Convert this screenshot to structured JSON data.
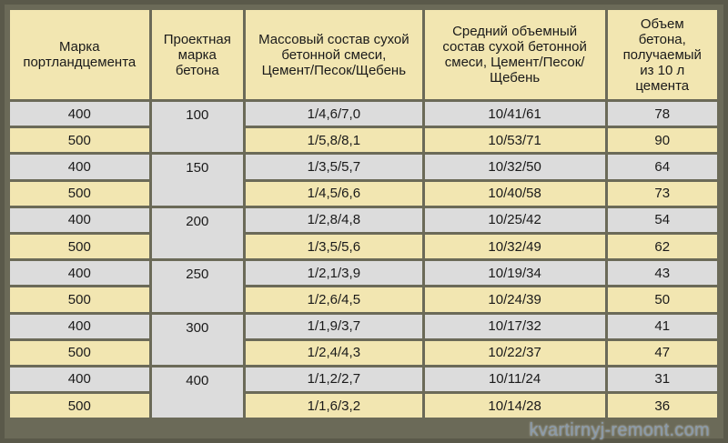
{
  "headers": [
    [
      "Марка",
      "портландцемента"
    ],
    [
      "Проектная",
      "марка",
      "бетона"
    ],
    [
      "Массовый состав сухой",
      "бетонной смеси,",
      "Цемент/Песок/Щебень"
    ],
    [
      "Средний объемный",
      "состав сухой бетонной",
      "смеси, Цемент/Песок/",
      "Щебень"
    ],
    [
      "Объем",
      "бетона,",
      "получаемый",
      "из 10 л",
      "цемента"
    ]
  ],
  "groups": [
    {
      "grade": "100",
      "rows": [
        {
          "cement": "400",
          "mass": "1/4,6/7,0",
          "volume": "10/41/61",
          "yield": "78"
        },
        {
          "cement": "500",
          "mass": "1/5,8/8,1",
          "volume": "10/53/71",
          "yield": "90"
        }
      ]
    },
    {
      "grade": "150",
      "rows": [
        {
          "cement": "400",
          "mass": "1/3,5/5,7",
          "volume": "10/32/50",
          "yield": "64"
        },
        {
          "cement": "500",
          "mass": "1/4,5/6,6",
          "volume": "10/40/58",
          "yield": "73"
        }
      ]
    },
    {
      "grade": "200",
      "rows": [
        {
          "cement": "400",
          "mass": "1/2,8/4,8",
          "volume": "10/25/42",
          "yield": "54"
        },
        {
          "cement": "500",
          "mass": "1/3,5/5,6",
          "volume": "10/32/49",
          "yield": "62"
        }
      ]
    },
    {
      "grade": "250",
      "rows": [
        {
          "cement": "400",
          "mass": "1/2,1/3,9",
          "volume": "10/19/34",
          "yield": "43"
        },
        {
          "cement": "500",
          "mass": "1/2,6/4,5",
          "volume": "10/24/39",
          "yield": "50"
        }
      ]
    },
    {
      "grade": "300",
      "rows": [
        {
          "cement": "400",
          "mass": "1/1,9/3,7",
          "volume": "10/17/32",
          "yield": "41"
        },
        {
          "cement": "500",
          "mass": "1/2,4/4,3",
          "volume": "10/22/37",
          "yield": "47"
        }
      ]
    },
    {
      "grade": "400",
      "rows": [
        {
          "cement": "400",
          "mass": "1/1,2/2,7",
          "volume": "10/11/24",
          "yield": "31"
        },
        {
          "cement": "500",
          "mass": "1/1,6/3,2",
          "volume": "10/14/28",
          "yield": "36"
        }
      ]
    }
  ],
  "watermark": "kvartirnyj-remont.com",
  "colors": {
    "header_bg": "#f2e6b1",
    "row_light": "#dcdcdc",
    "row_alt": "#f2e6b1",
    "border": "#6b6a58"
  }
}
